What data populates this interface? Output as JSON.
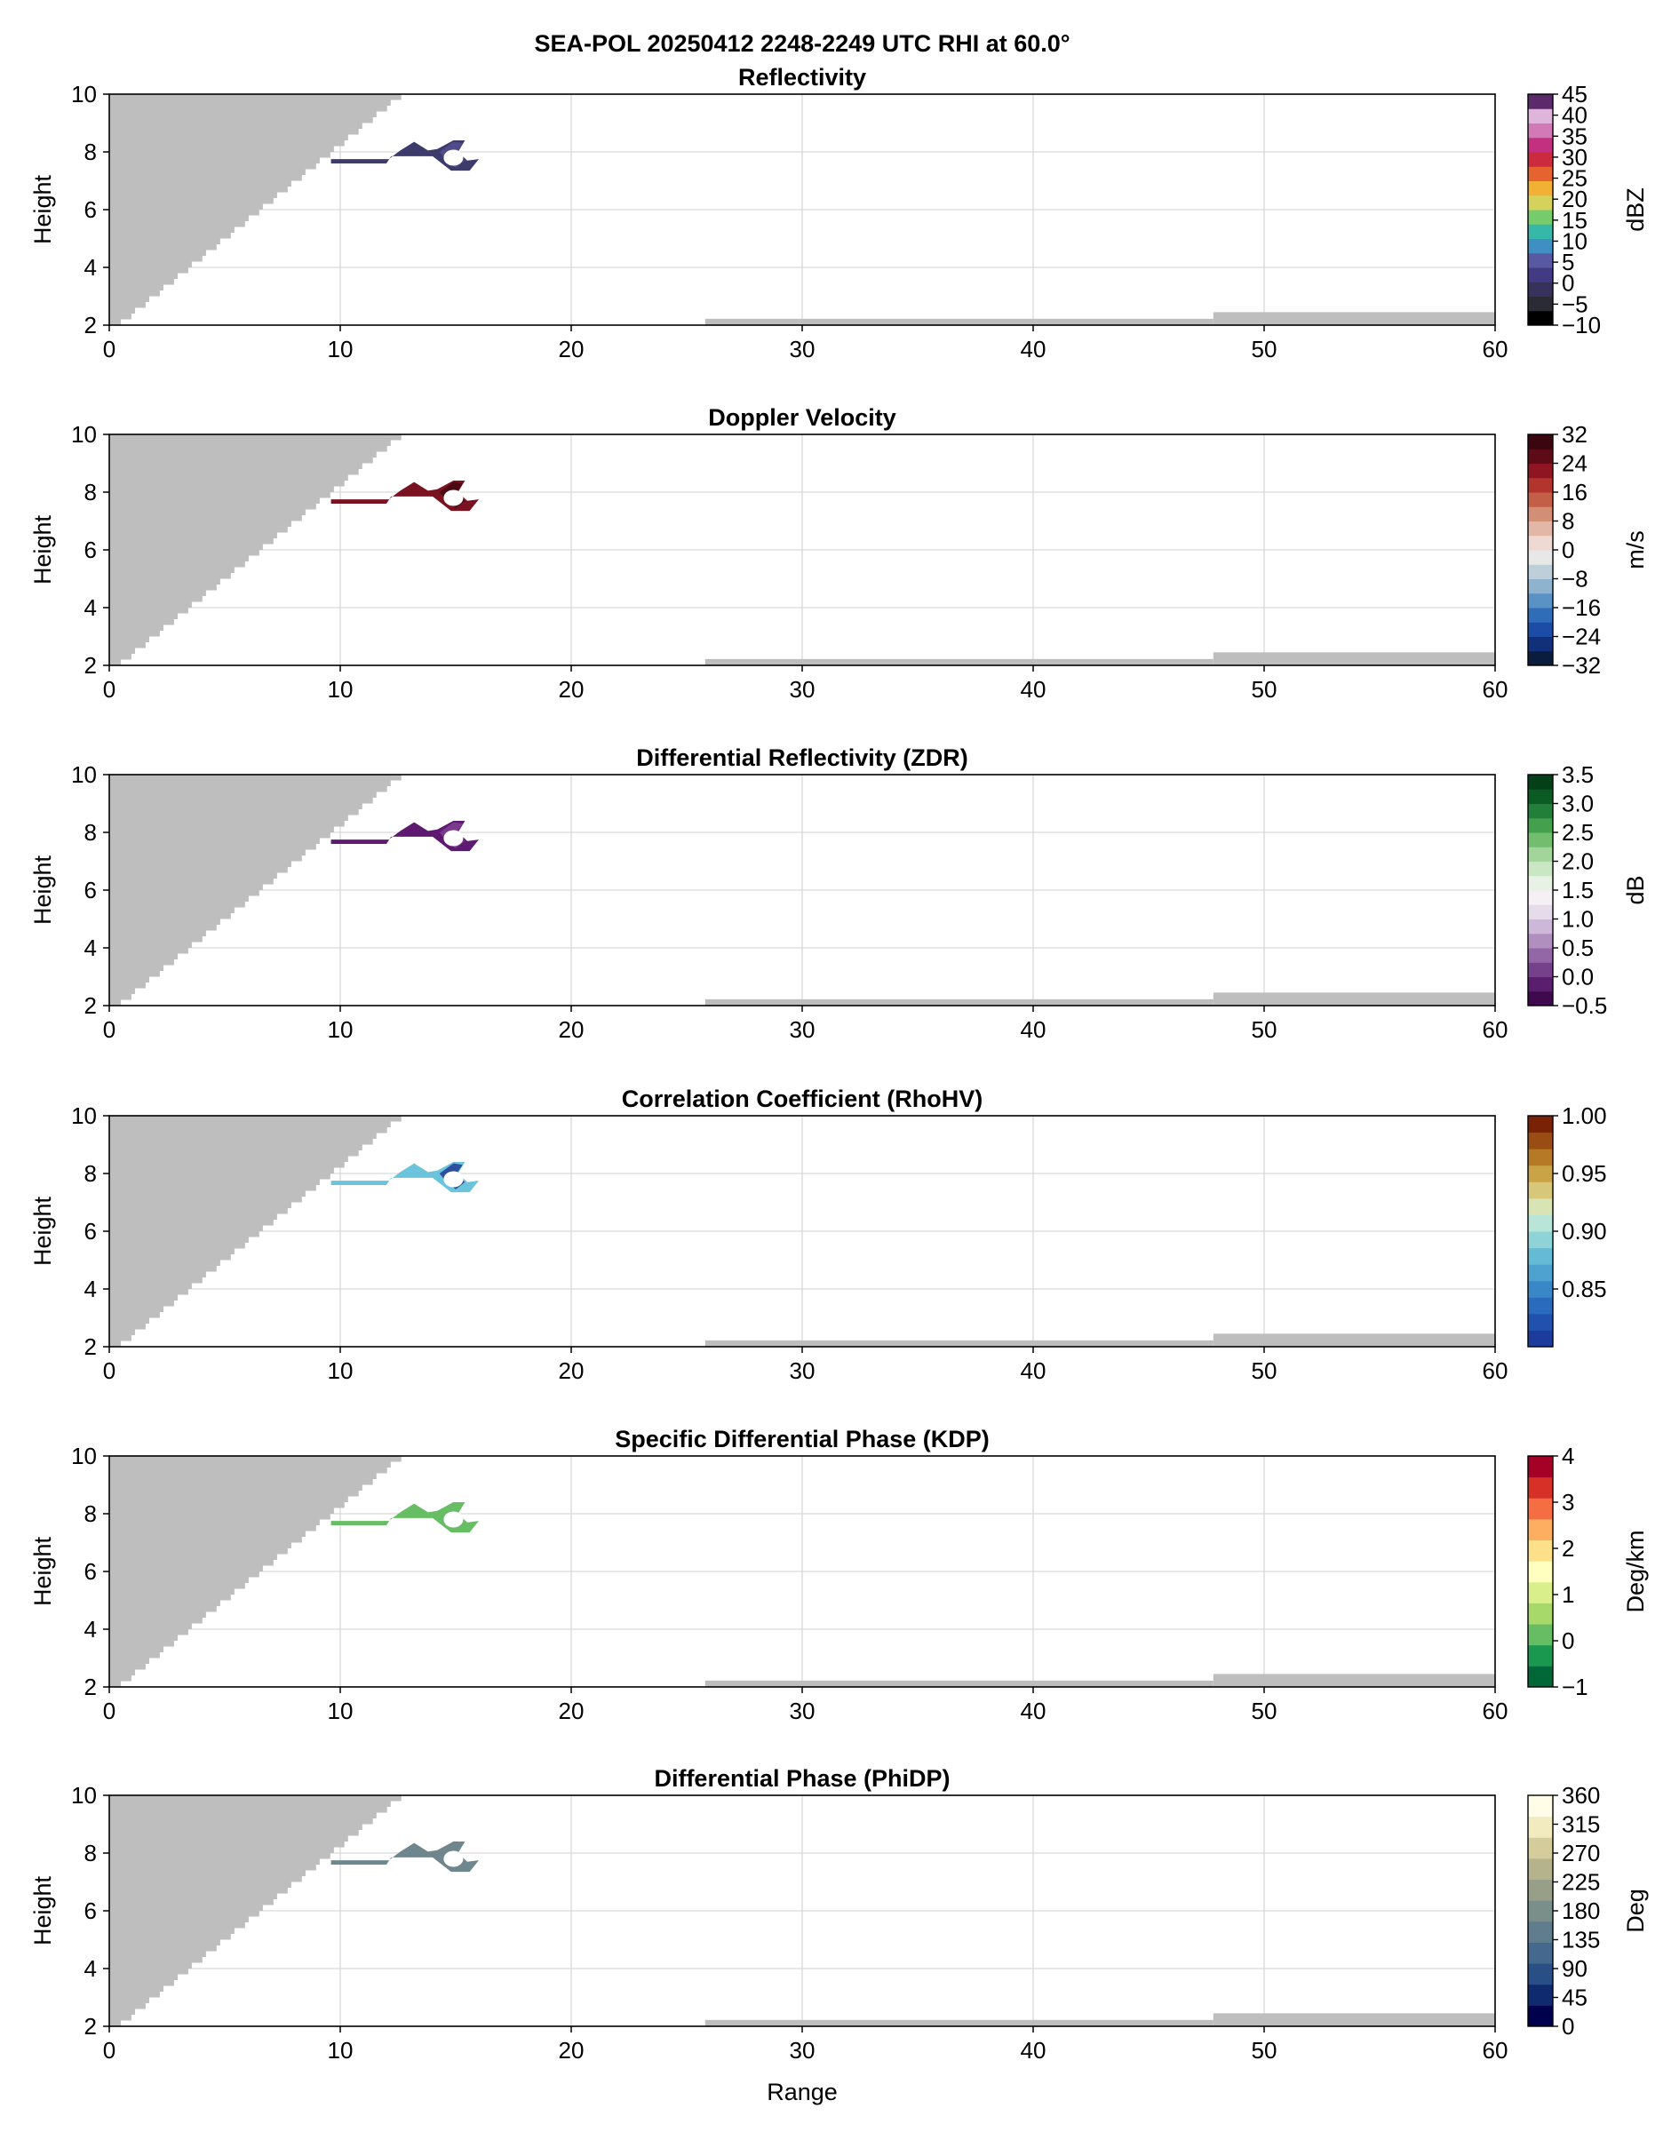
{
  "figure": {
    "title": "SEA-POL 20250412 2248-2249 UTC RHI at 60.0°",
    "xlabel": "Range",
    "ylabel": "Height"
  },
  "colors": {
    "blocked": "#bebebe",
    "grid": "#d9d9d9",
    "axes": "#000000"
  },
  "chart_data": [
    {
      "type": "heatmap",
      "title": "Reflectivity",
      "xlabel": "",
      "ylabel": "Height",
      "xlim": [
        0,
        60
      ],
      "ylim": [
        2,
        10
      ],
      "xticks": [
        "0",
        "10",
        "20",
        "30",
        "40",
        "50",
        "60"
      ],
      "yticks": [
        "2",
        "4",
        "6",
        "8",
        "10"
      ],
      "grid": true,
      "colorbar": {
        "label": "dBZ",
        "ticks": [
          "45",
          "40",
          "35",
          "30",
          "25",
          "20",
          "15",
          "10",
          "5",
          "0",
          "−5",
          "−10"
        ],
        "colors": [
          "#000000",
          "#2b2b36",
          "#37325c",
          "#423a83",
          "#5959a3",
          "#3f8fc4",
          "#37b7a8",
          "#76cc6a",
          "#d4d15c",
          "#f2b035",
          "#e6622e",
          "#cc2a3e",
          "#c2307f",
          "#d27ab8",
          "#e0b5dc",
          "#5c2a6b"
        ]
      },
      "echo_color": "#3c3b6b",
      "echo_color_2": "#524b8a"
    },
    {
      "type": "heatmap",
      "title": "Doppler Velocity",
      "xlabel": "",
      "ylabel": "Height",
      "xlim": [
        0,
        60
      ],
      "ylim": [
        2,
        10
      ],
      "xticks": [
        "0",
        "10",
        "20",
        "30",
        "40",
        "50",
        "60"
      ],
      "yticks": [
        "2",
        "4",
        "6",
        "8",
        "10"
      ],
      "grid": true,
      "colorbar": {
        "label": "m/s",
        "ticks": [
          "32",
          "24",
          "16",
          "8",
          "0",
          "−8",
          "−16",
          "−24",
          "−32"
        ],
        "colors": [
          "#0b1d3f",
          "#12307a",
          "#1c4ca6",
          "#2f6db8",
          "#5a92c6",
          "#8fb3cf",
          "#bfcfd9",
          "#e8e8e8",
          "#eed9d3",
          "#e2b7a8",
          "#d38e78",
          "#c45f47",
          "#b3332d",
          "#8e1521",
          "#5c0b17",
          "#3a0610"
        ]
      },
      "echo_color": "#7a1222",
      "echo_color_2": "#4a0a14"
    },
    {
      "type": "heatmap",
      "title": "Differential Reflectivity (ZDR)",
      "xlabel": "",
      "ylabel": "Height",
      "xlim": [
        0,
        60
      ],
      "ylim": [
        2,
        10
      ],
      "xticks": [
        "0",
        "10",
        "20",
        "30",
        "40",
        "50",
        "60"
      ],
      "yticks": [
        "2",
        "4",
        "6",
        "8",
        "10"
      ],
      "grid": true,
      "colorbar": {
        "label": "dB",
        "ticks": [
          "3.5",
          "3.0",
          "2.5",
          "2.0",
          "1.5",
          "1.0",
          "0.5",
          "0.0",
          "−0.5"
        ],
        "colors": [
          "#3f0a4d",
          "#5b1d6e",
          "#76418b",
          "#9367a6",
          "#b08fc0",
          "#cdb8d9",
          "#e6dbeb",
          "#f4f0f4",
          "#e7f2e4",
          "#c9e7c2",
          "#a2d59a",
          "#73bd6e",
          "#44a04d",
          "#227f39",
          "#0a5c24",
          "#03401a"
        ]
      },
      "echo_color": "#5e1a70",
      "echo_color_2": "#7a3a8e"
    },
    {
      "type": "heatmap",
      "title": "Correlation Coefficient (RhoHV)",
      "xlabel": "",
      "ylabel": "Height",
      "xlim": [
        0.0,
        60
      ],
      "ylim": [
        2,
        10
      ],
      "xticks": [
        "0",
        "10",
        "20",
        "30",
        "40",
        "50",
        "60"
      ],
      "yticks": [
        "2",
        "4",
        "6",
        "8",
        "10"
      ],
      "grid": true,
      "colorbar": {
        "label": "",
        "ticks": [
          "1.00",
          "0.95",
          "0.90",
          "0.85"
        ],
        "colors": [
          "#1b3c9a",
          "#2151ae",
          "#2b6bbe",
          "#3a87c8",
          "#4da2d0",
          "#65bbd6",
          "#8dd3d8",
          "#b9e4d8",
          "#d8e4b3",
          "#d6c77a",
          "#c9a346",
          "#b67a26",
          "#9a4d12",
          "#7a2206"
        ]
      },
      "echo_color": "#6bc3dc",
      "echo_color_2": "#2e4f9e"
    },
    {
      "type": "heatmap",
      "title": "Specific Differential Phase (KDP)",
      "xlabel": "",
      "ylabel": "Height",
      "xlim": [
        0,
        60
      ],
      "ylim": [
        2,
        10
      ],
      "xticks": [
        "0",
        "10",
        "20",
        "30",
        "40",
        "50",
        "60"
      ],
      "yticks": [
        "2",
        "4",
        "6",
        "8",
        "10"
      ],
      "grid": true,
      "colorbar": {
        "label": "Deg/km",
        "ticks": [
          "4",
          "3",
          "2",
          "1",
          "0",
          "−1"
        ],
        "colors": [
          "#006837",
          "#1a9850",
          "#66bd63",
          "#a6d96a",
          "#d9ef8b",
          "#ffffbf",
          "#fee08b",
          "#fdae61",
          "#f46d43",
          "#d73027",
          "#a50026"
        ]
      },
      "echo_color": "#66bd63",
      "echo_color_2": "#66bd63"
    },
    {
      "type": "heatmap",
      "title": "Differential Phase (PhiDP)",
      "xlabel": "Range",
      "ylabel": "Height",
      "xlim": [
        0,
        60
      ],
      "ylim": [
        2,
        10
      ],
      "xticks": [
        "0",
        "10",
        "20",
        "30",
        "40",
        "50",
        "60"
      ],
      "yticks": [
        "2",
        "4",
        "6",
        "8",
        "10"
      ],
      "grid": true,
      "colorbar": {
        "label": "Deg",
        "ticks": [
          "360",
          "315",
          "270",
          "225",
          "180",
          "135",
          "90",
          "45",
          "0"
        ],
        "colors": [
          "#00004c",
          "#0f2a6e",
          "#2a4f86",
          "#45698e",
          "#5f7d8c",
          "#7a8f8a",
          "#979f88",
          "#b5b38b",
          "#d4cc9a",
          "#f2ebc0",
          "#fffde8"
        ]
      },
      "echo_color": "#6e868c",
      "echo_color_2": "#6e868c"
    }
  ]
}
